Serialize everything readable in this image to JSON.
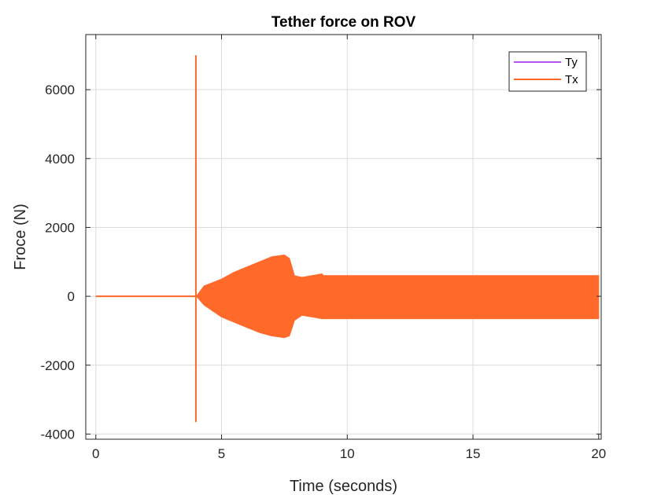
{
  "chart_data": {
    "type": "line",
    "title": "Tether force on ROV",
    "xlabel": "Time (seconds)",
    "ylabel": "Froce (N)",
    "xlim": [
      -0.4,
      20.1
    ],
    "ylim": [
      -4150,
      7600
    ],
    "x_ticks": [
      0,
      5,
      10,
      15,
      20
    ],
    "y_ticks": [
      -4000,
      -2000,
      0,
      2000,
      4000,
      6000
    ],
    "x_tick_labels": [
      "0",
      "5",
      "10",
      "15",
      "20"
    ],
    "y_tick_labels": [
      "-4000",
      "-2000",
      "0",
      "2000",
      "4000",
      "6000"
    ],
    "grid": true,
    "legend_position": "top-right",
    "series": [
      {
        "name": "Ty",
        "color": "#b452f0",
        "description_values": {
          "x": [
            0,
            20
          ],
          "y": [
            0,
            0
          ]
        }
      },
      {
        "name": "Tx",
        "color": "#ff6a2b",
        "baseline": {
          "x": [
            0,
            4
          ],
          "y": [
            0,
            0
          ]
        },
        "spike": {
          "x": 3.98,
          "max": 7000,
          "min": -3650
        },
        "envelope": {
          "x": [
            4.0,
            4.3,
            5.0,
            5.5,
            6.0,
            6.5,
            7.0,
            7.5,
            7.7,
            7.9,
            8.2,
            8.6,
            9.0,
            9.05,
            12.0,
            15.0,
            20.0
          ],
          "upper": [
            0,
            300,
            500,
            700,
            850,
            1000,
            1150,
            1200,
            1100,
            600,
            550,
            600,
            650,
            600,
            600,
            600,
            600
          ],
          "lower": [
            0,
            -250,
            -600,
            -750,
            -900,
            -1050,
            -1150,
            -1200,
            -1150,
            -700,
            -550,
            -600,
            -650,
            -650,
            -650,
            -650,
            -650
          ]
        }
      }
    ]
  }
}
